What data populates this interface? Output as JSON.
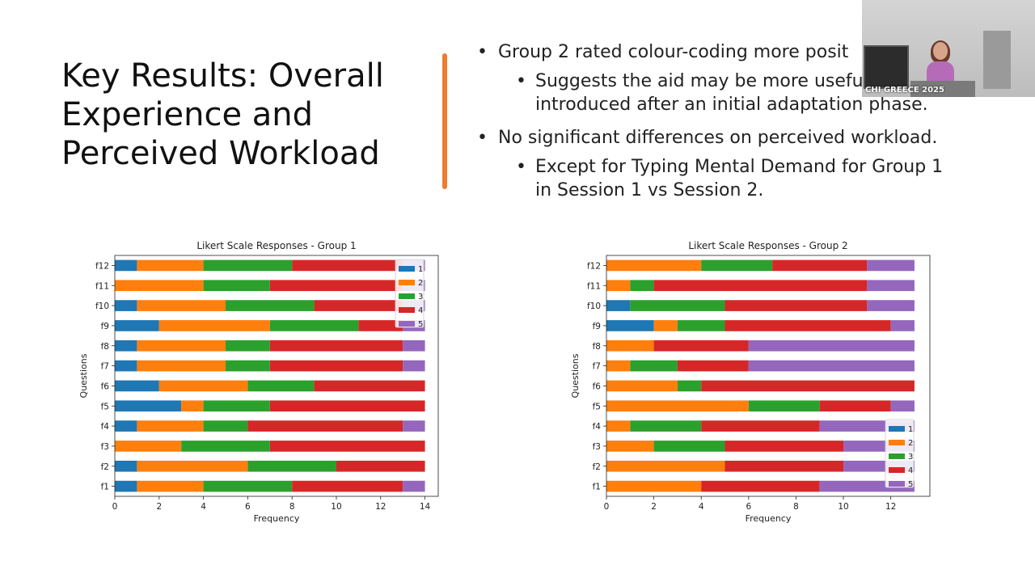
{
  "slide": {
    "title_lines": [
      "Key Results: Overall",
      "Experience and",
      "Perceived Workload"
    ],
    "bullet1": "Group 2 rated colour-coding more posit",
    "bullet1_sub_lines": [
      "Suggests the aid may be more usefu",
      "introduced after an initial adaptation phase."
    ],
    "bullet2": "No significant differences on perceived workload.",
    "bullet2_sub_lines": [
      "Except for Typing Mental Demand for Group 1",
      "in Session 1 vs Session 2."
    ],
    "bullet_glyph": "•",
    "accent_color": "#ed7d31"
  },
  "webcam": {
    "caption": "CHI GREECE 2025"
  },
  "colors": {
    "1": "#1f77b4",
    "2": "#ff7f0e",
    "3": "#2ca02c",
    "4": "#d62728",
    "5": "#9467bd"
  },
  "chart_data": [
    {
      "type": "bar",
      "orientation": "horizontal-stacked",
      "title": "Likert Scale Responses - Group 1",
      "xlabel": "Frequency",
      "ylabel": "Questions",
      "xlim": [
        0,
        14.6
      ],
      "xticks": [
        0,
        2,
        4,
        6,
        8,
        10,
        12,
        14
      ],
      "categories": [
        "f1",
        "f2",
        "f3",
        "f4",
        "f5",
        "f6",
        "f7",
        "f8",
        "f9",
        "f10",
        "f11",
        "f12"
      ],
      "series": [
        {
          "name": "1",
          "values": [
            1,
            1,
            0,
            1,
            3,
            2,
            1,
            1,
            2,
            1,
            0,
            1
          ]
        },
        {
          "name": "2",
          "values": [
            3,
            5,
            3,
            3,
            1,
            4,
            4,
            4,
            5,
            4,
            4,
            3
          ]
        },
        {
          "name": "3",
          "values": [
            4,
            4,
            4,
            2,
            3,
            3,
            2,
            2,
            4,
            4,
            3,
            4
          ]
        },
        {
          "name": "4",
          "values": [
            5,
            4,
            7,
            7,
            7,
            5,
            6,
            6,
            2,
            4,
            6,
            5
          ]
        },
        {
          "name": "5",
          "values": [
            1,
            0,
            0,
            1,
            0,
            0,
            1,
            1,
            1,
            1,
            1,
            1
          ]
        }
      ],
      "legend": "top-right"
    },
    {
      "type": "bar",
      "orientation": "horizontal-stacked",
      "title": "Likert Scale Responses - Group 2",
      "xlabel": "Frequency",
      "ylabel": "Questions",
      "xlim": [
        0,
        13.65
      ],
      "xticks": [
        0,
        2,
        4,
        6,
        8,
        10,
        12
      ],
      "categories": [
        "f1",
        "f2",
        "f3",
        "f4",
        "f5",
        "f6",
        "f7",
        "f8",
        "f9",
        "f10",
        "f11",
        "f12"
      ],
      "series": [
        {
          "name": "1",
          "values": [
            0,
            0,
            0,
            0,
            0,
            0,
            0,
            0,
            2,
            1,
            0,
            0
          ]
        },
        {
          "name": "2",
          "values": [
            4,
            5,
            2,
            1,
            6,
            3,
            1,
            2,
            1,
            0,
            1,
            4
          ]
        },
        {
          "name": "3",
          "values": [
            0,
            0,
            3,
            3,
            3,
            1,
            2,
            0,
            2,
            4,
            1,
            3
          ]
        },
        {
          "name": "4",
          "values": [
            5,
            5,
            5,
            5,
            3,
            9,
            3,
            4,
            7,
            6,
            9,
            4
          ]
        },
        {
          "name": "5",
          "values": [
            4,
            3,
            3,
            4,
            1,
            0,
            7,
            7,
            1,
            2,
            2,
            2
          ]
        }
      ],
      "legend": "bottom-right"
    }
  ]
}
